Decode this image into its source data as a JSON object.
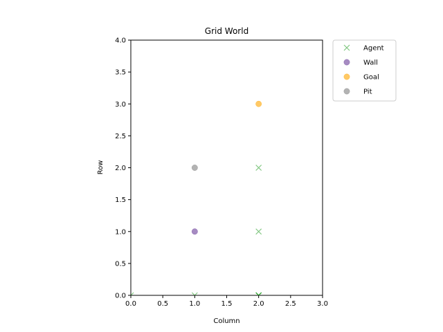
{
  "chart_data": {
    "type": "scatter",
    "title": "Grid World",
    "xlabel": "Column",
    "ylabel": "Row",
    "xlim": [
      0,
      3
    ],
    "ylim": [
      0,
      4
    ],
    "xticks": [
      "0.0",
      "0.5",
      "1.0",
      "1.5",
      "2.0",
      "2.5",
      "3.0"
    ],
    "yticks": [
      "0.0",
      "0.5",
      "1.0",
      "1.5",
      "2.0",
      "2.5",
      "3.0",
      "3.5",
      "4.0"
    ],
    "grid": false,
    "legend_position": "outside upper right",
    "series": [
      {
        "name": "Agent",
        "marker": "x",
        "color": "#2ca02c",
        "alpha": 0.6,
        "points": [
          [
            0,
            0
          ],
          [
            1,
            0
          ],
          [
            2,
            0
          ],
          [
            2,
            0
          ],
          [
            2,
            0
          ],
          [
            2,
            0
          ],
          [
            2,
            1
          ],
          [
            2,
            2
          ]
        ]
      },
      {
        "name": "Wall",
        "marker": "circle",
        "color": "#6a3d9a",
        "alpha": 0.6,
        "points": [
          [
            1,
            1
          ]
        ]
      },
      {
        "name": "Goal",
        "marker": "circle",
        "color": "#ffa500",
        "alpha": 0.6,
        "points": [
          [
            2,
            3
          ]
        ]
      },
      {
        "name": "Pit",
        "marker": "circle",
        "color": "#808080",
        "alpha": 0.6,
        "points": [
          [
            1,
            2
          ]
        ]
      }
    ]
  }
}
